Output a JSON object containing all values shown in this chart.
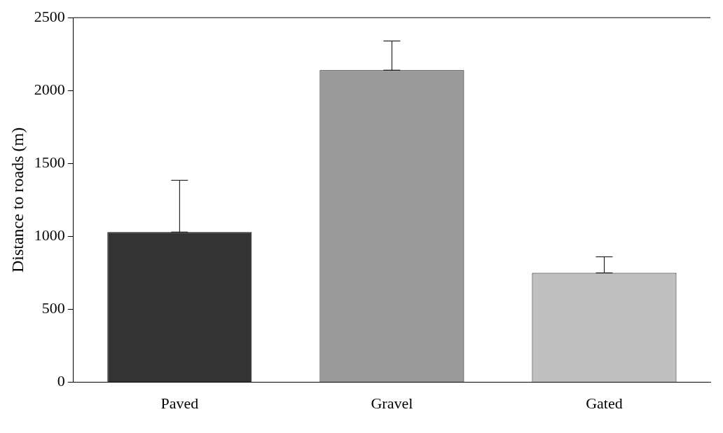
{
  "chart_data": {
    "type": "bar",
    "ylabel": "Distance to roads (m)",
    "categories": [
      "Paved",
      "Gravel",
      "Gated"
    ],
    "values": [
      1030,
      2140,
      750
    ],
    "colors": [
      "#333333",
      "#9a9a9a",
      "#c0c0c0"
    ],
    "errors": [
      [
        1030,
        1385
      ],
      [
        2140,
        2340
      ],
      [
        750,
        860
      ]
    ],
    "ylim": [
      0,
      2500
    ],
    "yticks": [
      0,
      500,
      1000,
      1500,
      2000,
      2500
    ],
    "grid": false,
    "legend": false
  }
}
